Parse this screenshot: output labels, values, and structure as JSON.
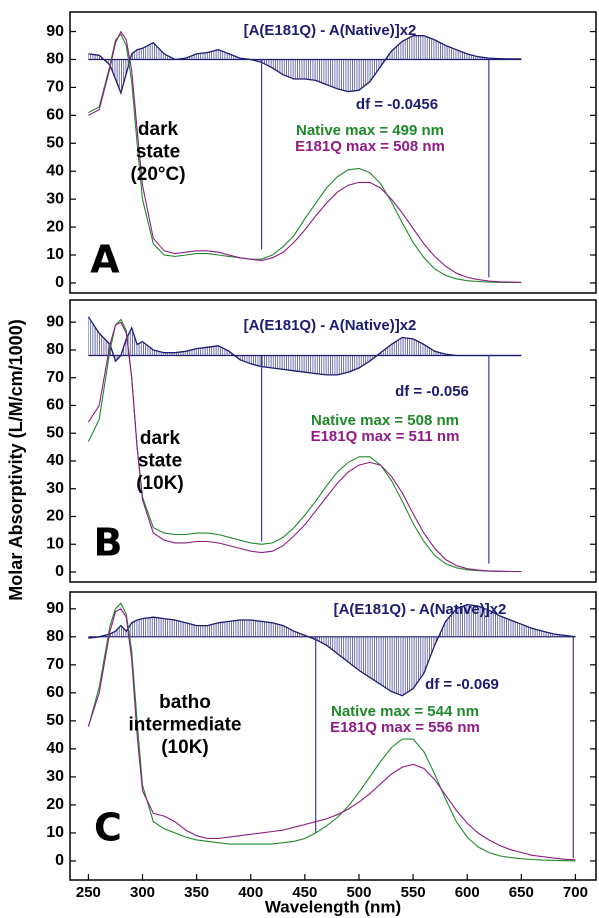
{
  "chart_data": [
    {
      "type": "line",
      "label": "A",
      "state_label": [
        "dark",
        "state",
        "(20°C)"
      ],
      "annotation": "df = -0.0456",
      "x": [
        250,
        260,
        270,
        275,
        280,
        285,
        290,
        295,
        300,
        310,
        320,
        330,
        340,
        350,
        360,
        370,
        380,
        390,
        400,
        410,
        420,
        430,
        440,
        450,
        460,
        470,
        480,
        490,
        500,
        510,
        520,
        530,
        540,
        550,
        560,
        570,
        580,
        590,
        600,
        610,
        620,
        630,
        640,
        650
      ],
      "xlim": [
        233,
        719
      ],
      "ylim": [
        -3.6,
        97
      ],
      "yticks": [
        0,
        10,
        20,
        30,
        40,
        50,
        60,
        70,
        80,
        90
      ],
      "series": [
        {
          "name": "[A(E181Q) - A(Native)]x2",
          "color": "#1c1c72",
          "fill_to": 80,
          "values": [
            82,
            81.5,
            78,
            73,
            68,
            75,
            82,
            83.5,
            84,
            86,
            82,
            80,
            80.5,
            82,
            82.5,
            83.5,
            82,
            80.5,
            80,
            79,
            77,
            74.5,
            73,
            73,
            72.5,
            71,
            69.5,
            68.5,
            69,
            72,
            77.5,
            83,
            86.5,
            88.5,
            88.5,
            87,
            85,
            83.5,
            82,
            81,
            80.5,
            80.3,
            80.2,
            80.2
          ]
        },
        {
          "name": "Native max =  499 nm",
          "color": "#1f8a2a",
          "values": [
            61,
            63,
            78,
            87,
            89,
            85,
            72,
            50,
            30,
            14,
            10,
            9.5,
            10,
            10.5,
            10.5,
            10,
            9.5,
            9,
            8.5,
            8.5,
            10,
            13,
            17,
            23,
            28.5,
            34,
            38,
            40.5,
            41,
            39.5,
            35.5,
            29,
            21.5,
            14.5,
            9,
            5,
            2.7,
            1.5,
            0.8,
            0.5,
            0.3,
            0.2,
            0.2,
            0.2
          ]
        },
        {
          "name": "E181Q max =  508 nm",
          "color": "#8e1b86",
          "values": [
            60,
            62,
            77,
            86,
            90,
            87,
            76,
            55,
            35,
            16,
            11.5,
            10.5,
            11,
            11.5,
            11.5,
            11,
            10,
            9,
            8.5,
            8,
            9,
            11,
            14.5,
            19,
            24,
            28.5,
            32.5,
            35,
            36,
            36,
            34,
            30,
            25,
            19.5,
            14,
            9.5,
            6,
            3.5,
            2,
            1.2,
            0.7,
            0.4,
            0.3,
            0.2
          ]
        }
      ],
      "vlines": [
        {
          "x": 410,
          "y": [
            12,
            80
          ]
        },
        {
          "x": 620,
          "y": [
            2,
            80
          ]
        }
      ]
    },
    {
      "type": "line",
      "label": "B",
      "state_label": [
        "dark",
        "state",
        "(10K)"
      ],
      "annotation": "df =  -0.056",
      "ylabel": "Molar Absorptivity (L/M/cm/1000)",
      "x": [
        250,
        260,
        270,
        275,
        280,
        285,
        290,
        295,
        300,
        310,
        320,
        330,
        340,
        350,
        360,
        370,
        380,
        390,
        400,
        410,
        420,
        430,
        440,
        450,
        460,
        470,
        480,
        490,
        500,
        510,
        520,
        530,
        540,
        550,
        560,
        570,
        580,
        590,
        600,
        610,
        620,
        630,
        640,
        650
      ],
      "xlim": [
        233,
        719
      ],
      "ylim": [
        -3.6,
        98
      ],
      "yticks": [
        0,
        10,
        20,
        30,
        40,
        50,
        60,
        70,
        80,
        90
      ],
      "series": [
        {
          "name": "[A(E181Q) - A(Native)]x2",
          "color": "#1c1c72",
          "fill_to": 78,
          "values": [
            92,
            86,
            82,
            76,
            78,
            84,
            88,
            82,
            83,
            80,
            79,
            79,
            79.5,
            80.5,
            81,
            81.5,
            79.5,
            76.5,
            75,
            74,
            73.5,
            73,
            72.5,
            72,
            71.5,
            71,
            71,
            72,
            73.5,
            76,
            79,
            82,
            84.5,
            84,
            82,
            79.5,
            78.5,
            78,
            78,
            78,
            78,
            78,
            78,
            78
          ]
        },
        {
          "name": "Native max =  508 nm",
          "color": "#1f8a2a",
          "values": [
            47,
            55,
            80,
            89,
            91,
            87,
            70,
            45,
            27,
            16,
            14,
            13.5,
            13.5,
            14,
            14,
            13.5,
            12.5,
            11.5,
            10.5,
            10,
            10.5,
            12.5,
            16,
            20.5,
            25.5,
            31,
            36,
            39.5,
            41.5,
            41.5,
            38.5,
            33,
            25.5,
            17.5,
            11,
            6,
            3,
            1.5,
            0.8,
            0.5,
            0.3,
            0.2,
            0.2,
            0.2
          ]
        },
        {
          "name": "E181Q max =  511 nm",
          "color": "#8e1b86",
          "values": [
            54,
            60,
            82,
            89,
            90,
            86,
            70,
            45,
            26,
            14,
            11.5,
            10.5,
            10.5,
            11,
            11,
            10.5,
            9.5,
            8.5,
            7.5,
            7,
            7.5,
            9.5,
            13,
            17,
            22,
            27,
            32,
            36,
            38.5,
            39.5,
            38.5,
            34.5,
            28.5,
            21,
            14,
            8.5,
            4.5,
            2.3,
            1.2,
            0.7,
            0.4,
            0.3,
            0.2,
            0.2
          ]
        }
      ],
      "vlines": [
        {
          "x": 410,
          "y": [
            11,
            78
          ]
        },
        {
          "x": 620,
          "y": [
            3,
            78
          ]
        }
      ]
    },
    {
      "type": "line",
      "label": "C",
      "state_label": [
        "batho",
        "intermediate",
        "(10K)"
      ],
      "annotation": "df =  -0.069",
      "xlabel": "Wavelength (nm)",
      "x": [
        250,
        260,
        270,
        275,
        280,
        285,
        290,
        295,
        300,
        310,
        320,
        330,
        340,
        350,
        360,
        370,
        380,
        390,
        400,
        410,
        420,
        430,
        440,
        450,
        460,
        470,
        480,
        490,
        500,
        510,
        520,
        530,
        540,
        550,
        560,
        570,
        580,
        590,
        600,
        610,
        620,
        630,
        640,
        650,
        660,
        670,
        680,
        690,
        700
      ],
      "xlim": [
        233,
        719
      ],
      "ylim": [
        -6.8,
        96
      ],
      "yticks": [
        0,
        10,
        20,
        30,
        40,
        50,
        60,
        70,
        80,
        90
      ],
      "xticks": [
        250,
        300,
        350,
        400,
        450,
        500,
        550,
        600,
        650,
        700
      ],
      "series": [
        {
          "name": "[A(E181Q) - A(Native)]x2",
          "color": "#1c1c72",
          "fill_to": 80,
          "values": [
            79.5,
            80,
            81,
            82,
            84,
            82,
            85,
            86,
            86.5,
            87,
            86.5,
            86,
            85,
            84,
            84,
            85,
            85.5,
            86,
            86,
            85.5,
            85,
            84,
            82,
            80.5,
            79,
            77,
            74,
            71,
            68,
            65.5,
            63,
            60.5,
            59,
            61.5,
            67,
            77,
            85.5,
            90,
            91.5,
            91,
            89.5,
            87.5,
            86,
            84.5,
            83,
            82,
            81,
            80.5,
            80
          ]
        },
        {
          "name": "Native max =  544 nm",
          "color": "#1f8a2a",
          "values": [
            48,
            62,
            84,
            90,
            92,
            88,
            75,
            50,
            27,
            14,
            11.5,
            10,
            8.5,
            7.5,
            7,
            6.5,
            6,
            6,
            6,
            6,
            6,
            6.5,
            7,
            8,
            10,
            12.5,
            15.5,
            19.5,
            24.5,
            30,
            35.5,
            40.5,
            43.5,
            43.5,
            39,
            31,
            22,
            14,
            8.5,
            5,
            3,
            1.8,
            1.2,
            0.8,
            0.5,
            0.3,
            0.2,
            0.1,
            0
          ]
        },
        {
          "name": "E181Q max =  556 nm",
          "color": "#8e1b86",
          "values": [
            48,
            60,
            82,
            89,
            90,
            87,
            72,
            45,
            25,
            17,
            16,
            14,
            11,
            9,
            8,
            8,
            8.5,
            9,
            9.5,
            10,
            10.5,
            11,
            12,
            13,
            14,
            15,
            16.5,
            18.5,
            21,
            24,
            27.5,
            31,
            33.5,
            34.5,
            33,
            29,
            23.5,
            18,
            13.5,
            10,
            7.5,
            5.5,
            4,
            3,
            2,
            1.5,
            1,
            0.6,
            0.4
          ]
        }
      ],
      "vlines": [
        {
          "x": 460,
          "y": [
            10,
            80
          ]
        },
        {
          "x": 698,
          "y": [
            1,
            80
          ]
        }
      ]
    }
  ]
}
